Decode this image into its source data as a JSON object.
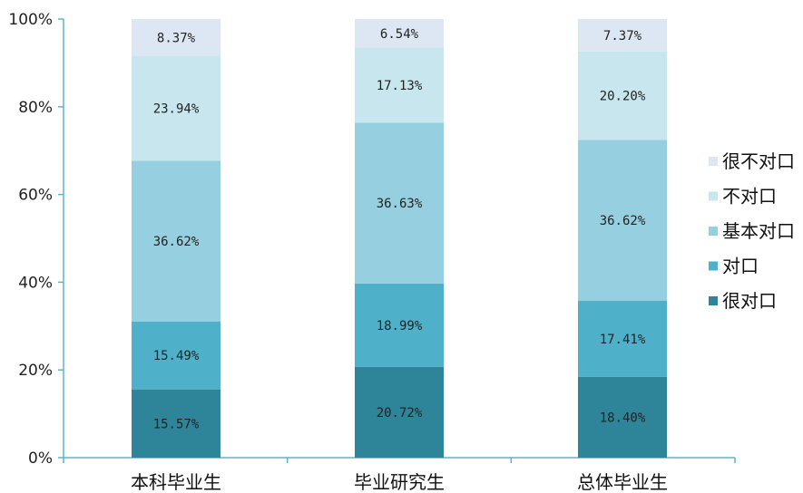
{
  "chart_data": {
    "type": "bar",
    "stacked": true,
    "title": "",
    "xlabel": "",
    "ylabel": "",
    "ylim": [
      0,
      100
    ],
    "yticks": [
      "0%",
      "20%",
      "40%",
      "60%",
      "80%",
      "100%"
    ],
    "categories": [
      "本科毕业生",
      "毕业研究生",
      "总体毕业生"
    ],
    "series": [
      {
        "name": "很对口",
        "color": "#2e8499",
        "values": [
          15.57,
          20.72,
          18.4
        ],
        "labels": [
          "15.57%",
          "20.72%",
          "18.40%"
        ]
      },
      {
        "name": "对口",
        "color": "#4fb1c9",
        "values": [
          15.49,
          18.99,
          17.41
        ],
        "labels": [
          "15.49%",
          "18.99%",
          "17.41%"
        ]
      },
      {
        "name": "基本对口",
        "color": "#96cfdf",
        "values": [
          36.62,
          36.63,
          36.62
        ],
        "labels": [
          "36.62%",
          "36.63%",
          "36.62%"
        ]
      },
      {
        "name": "不对口",
        "color": "#c7e6ee",
        "values": [
          23.94,
          17.13,
          20.2
        ],
        "labels": [
          "23.94%",
          "17.13%",
          "20.20%"
        ]
      },
      {
        "name": "很不对口",
        "color": "#dde7f3",
        "values": [
          8.37,
          6.54,
          7.37
        ],
        "labels": [
          "8.37%",
          "6.54%",
          "7.37%"
        ]
      }
    ],
    "legend_position": "right",
    "legend_order": [
      "很不对口",
      "不对口",
      "基本对口",
      "对口",
      "很对口"
    ],
    "grid": false
  }
}
